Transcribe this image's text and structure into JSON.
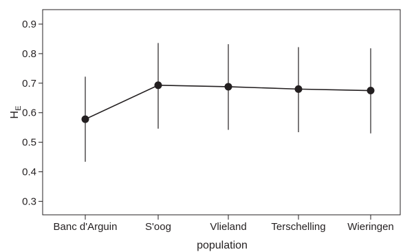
{
  "chart_data": {
    "type": "line",
    "title": "",
    "xlabel": "population",
    "ylabel": {
      "main": "H",
      "sub": "E"
    },
    "categories": [
      "Banc d'Arguin",
      "S'oog",
      "Vlieland",
      "Terschelling",
      "Wieringen"
    ],
    "series": [
      {
        "values": [
          0.578,
          0.693,
          0.688,
          0.68,
          0.675
        ],
        "err_lower": [
          0.434,
          0.546,
          0.542,
          0.534,
          0.53
        ],
        "err_upper": [
          0.722,
          0.836,
          0.832,
          0.822,
          0.818
        ]
      }
    ],
    "ylim": [
      0.25,
      0.95
    ],
    "yticks": [
      0.3,
      0.4,
      0.5,
      0.6,
      0.7,
      0.8,
      0.9
    ],
    "ytick_labels": [
      "0.3",
      "0.4",
      "0.5",
      "0.6",
      "0.7",
      "0.8",
      "0.9"
    ],
    "grid": false,
    "legend": "none",
    "colors": {
      "line": "#231f20",
      "marker": "#231f20",
      "errorbar": "#231f20",
      "axis": "#231f20"
    }
  }
}
